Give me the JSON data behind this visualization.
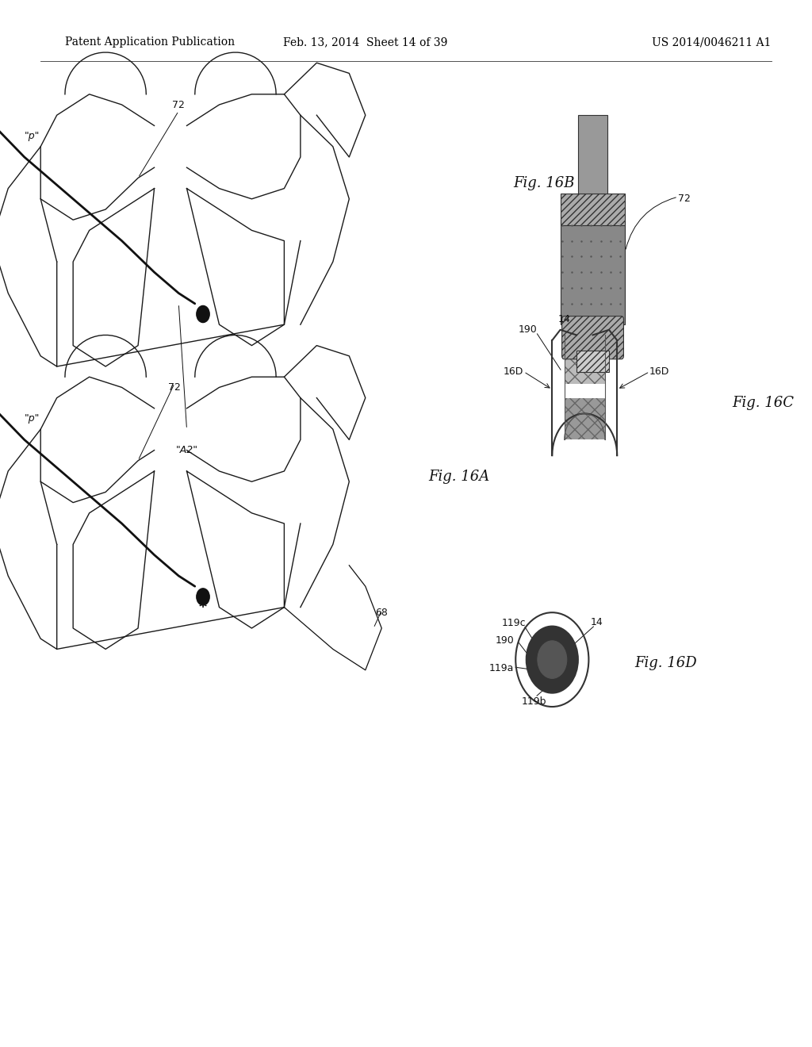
{
  "background_color": "#ffffff",
  "header_left": "Patent Application Publication",
  "header_center": "Feb. 13, 2014  Sheet 14 of 39",
  "header_right": "US 2014/0046211 A1",
  "header_fontsize": 10,
  "fig_label_fontsize": 13,
  "annotation_fontsize": 9
}
